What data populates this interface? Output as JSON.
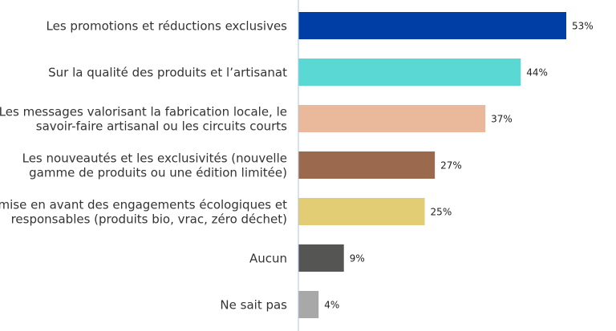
{
  "chart_data": {
    "type": "bar",
    "orientation": "horizontal",
    "title": "",
    "xlabel": "",
    "ylabel": "",
    "xlim": [
      0,
      53
    ],
    "grid": false,
    "legend": "none",
    "value_suffix": "%",
    "categories": [
      [
        "Les promotions et réductions exclusives"
      ],
      [
        "Sur la qualité des produits et l’artisanat"
      ],
      [
        "Les messages valorisant la fabrication locale, le",
        "savoir-faire artisanal ou les circuits courts"
      ],
      [
        "Les nouveautés et les exclusivités (nouvelle",
        "gamme de produits ou une édition limitée)"
      ],
      [
        "a mise en avant des engagements écologiques et",
        "responsables (produits bio, vrac, zéro déchet)"
      ],
      [
        "Aucun"
      ],
      [
        "Ne sait pas"
      ]
    ],
    "values": [
      53,
      44,
      37,
      27,
      25,
      9,
      4
    ],
    "value_labels": [
      "53%",
      "44%",
      "37%",
      "27%",
      "25%",
      "9%",
      "4%"
    ],
    "colors": [
      "#003DA5",
      "#5AD8D4",
      "#EAB99B",
      "#9B6A4E",
      "#E2CD74",
      "#555553",
      "#A8A8A8"
    ],
    "axis_color": "#A9C7E8"
  }
}
